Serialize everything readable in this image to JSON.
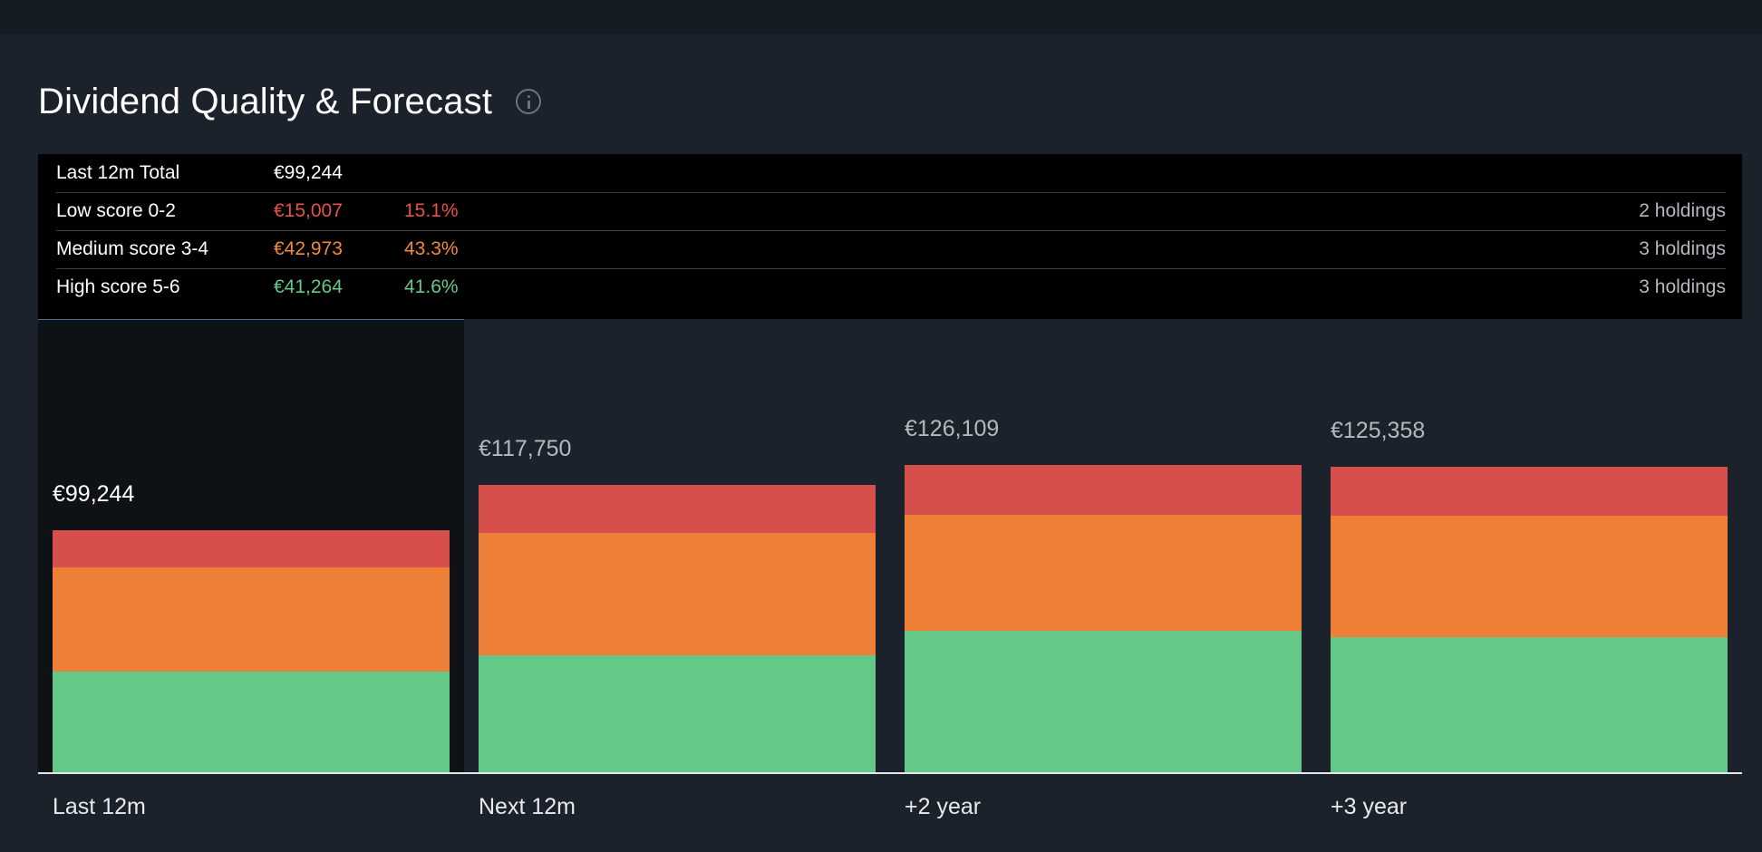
{
  "header": {
    "title": "Dividend Quality & Forecast",
    "info_icon": "info-icon"
  },
  "summary": {
    "total": {
      "label": "Last 12m Total",
      "amount": "€99,244"
    },
    "rows": [
      {
        "label": "Low score 0-2",
        "amount": "€15,007",
        "pct": "15.1%",
        "holdings": "2 holdings",
        "color": "#e5524a"
      },
      {
        "label": "Medium score 3-4",
        "amount": "€42,973",
        "pct": "43.3%",
        "holdings": "3 holdings",
        "color": "#f08a3c"
      },
      {
        "label": "High score 5-6",
        "amount": "€41,264",
        "pct": "41.6%",
        "holdings": "3 holdings",
        "color": "#64c888"
      }
    ]
  },
  "chart_data": {
    "type": "bar",
    "stacked": true,
    "categories": [
      "Last 12m",
      "Next 12m",
      "+2 year",
      "+3 year"
    ],
    "totals": [
      99244,
      117750,
      126109,
      125358
    ],
    "total_labels": [
      "€99,244",
      "€117,750",
      "€126,109",
      "€125,358"
    ],
    "series": [
      {
        "name": "High score 5-6",
        "color": "#64c888",
        "values": [
          41264,
          48000,
          58000,
          55600
        ]
      },
      {
        "name": "Medium score 3-4",
        "color": "#ee7f37",
        "values": [
          42973,
          50200,
          47500,
          49700
        ]
      },
      {
        "name": "Low score 0-2",
        "color": "#d64f4a",
        "values": [
          15007,
          19550,
          20609,
          20058
        ]
      }
    ],
    "ylim": [
      0,
      186000
    ],
    "grid": false,
    "highlighted_category": "Last 12m"
  }
}
